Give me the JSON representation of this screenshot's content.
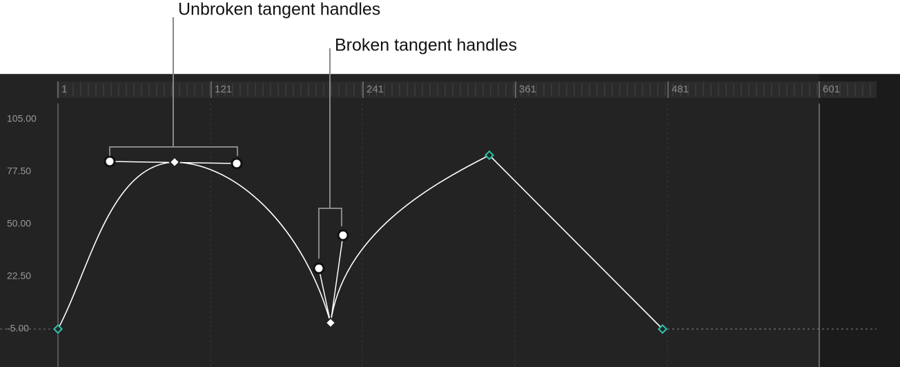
{
  "annotations": [
    "Unbroken tangent handles",
    "Broken tangent handles"
  ],
  "ruler_labels": [
    "1",
    "121",
    "241",
    "361",
    "481",
    "601"
  ],
  "value_labels": [
    "105.00",
    "77.50",
    "50.00",
    "22.50",
    "-5.00"
  ]
}
